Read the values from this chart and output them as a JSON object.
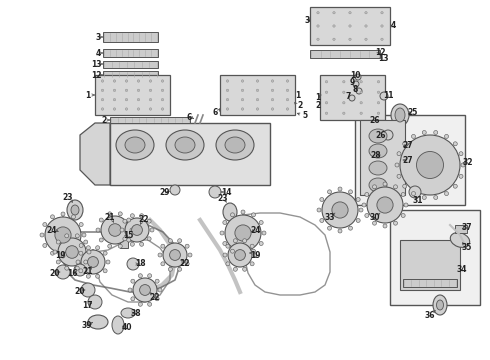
{
  "bg_color": "#ffffff",
  "fig_width": 4.9,
  "fig_height": 3.6,
  "dpi": 100,
  "line_color": "#555555",
  "label_color": "#222222",
  "fill_light": "#e8e8e8",
  "fill_mid": "#d0d0d0",
  "fill_dark": "#b8b8b8"
}
